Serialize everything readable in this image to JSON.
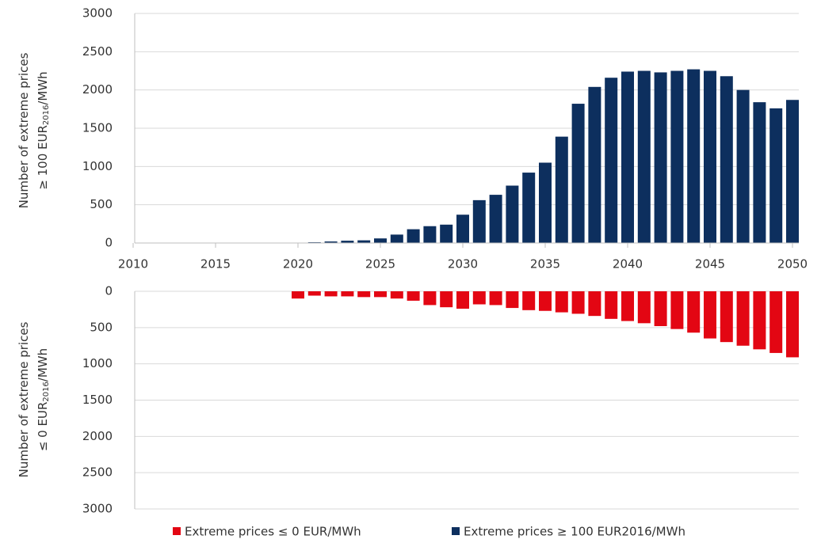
{
  "chart_data": [
    {
      "type": "bar",
      "ylabel": {
        "line1": "Number of extreme prices",
        "line2": "≥ 100 EUR",
        "sub": "2016",
        "unit": "/MWh"
      },
      "x": [
        2010,
        2011,
        2012,
        2013,
        2014,
        2015,
        2016,
        2017,
        2018,
        2019,
        2020,
        2021,
        2022,
        2023,
        2024,
        2025,
        2026,
        2027,
        2028,
        2029,
        2030,
        2031,
        2032,
        2033,
        2034,
        2035,
        2036,
        2037,
        2038,
        2039,
        2040,
        2041,
        2042,
        2043,
        2044,
        2045,
        2046,
        2047,
        2048,
        2049,
        2050
      ],
      "xlim": [
        2010,
        2050
      ],
      "xticks": [
        2010,
        2015,
        2020,
        2025,
        2030,
        2035,
        2040,
        2045,
        2050
      ],
      "series": [
        {
          "name": "Extreme prices ≥ 100 EUR2016/MWh",
          "color": "#0d2f5e",
          "values": [
            0,
            0,
            0,
            0,
            0,
            0,
            0,
            0,
            0,
            0,
            5,
            10,
            20,
            30,
            35,
            60,
            110,
            180,
            220,
            240,
            370,
            560,
            630,
            750,
            920,
            1050,
            1390,
            1820,
            2040,
            2160,
            2240,
            2250,
            2230,
            2250,
            2270,
            2250,
            2180,
            2000,
            1840,
            1760,
            1870
          ]
        }
      ],
      "ylim": [
        0,
        3000
      ],
      "yticks": [
        0,
        500,
        1000,
        1500,
        2000,
        2500,
        3000
      ],
      "grid": true
    },
    {
      "type": "bar",
      "ylabel": {
        "line1": "Number of extreme prices",
        "line2": "≤ 0 EUR",
        "sub": "2016",
        "unit": "/MWh"
      },
      "series": [
        {
          "name": "Extreme prices ≤ 0 EUR/MWh",
          "color": "#e30613",
          "values": [
            0,
            0,
            0,
            0,
            0,
            0,
            0,
            0,
            0,
            0,
            100,
            60,
            70,
            70,
            80,
            80,
            100,
            130,
            190,
            220,
            240,
            180,
            190,
            230,
            260,
            270,
            290,
            310,
            340,
            380,
            410,
            440,
            480,
            520,
            570,
            650,
            700,
            750,
            800,
            850,
            910
          ]
        }
      ],
      "ylim": [
        0,
        3000
      ],
      "inverted": true,
      "yticks": [
        0,
        500,
        1000,
        1500,
        2000,
        2500,
        3000
      ],
      "grid": true
    }
  ]
}
